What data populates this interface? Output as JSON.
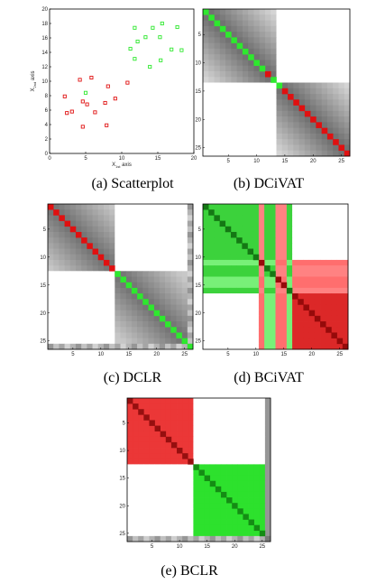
{
  "captions": {
    "a": "(a) Scatterplot",
    "b": "(b) DCiVAT",
    "c": "(c) DCLR",
    "d": "(d) BCiVAT",
    "e": "(e) BCLR"
  },
  "colors": {
    "red": "#e01010",
    "green": "#2ee82e",
    "frame": "#000000"
  },
  "chart_data": [
    {
      "id": "a",
      "type": "scatter",
      "xlabel_main": "X",
      "xlabel_sub": "1st",
      "xlabel_rest": "axis",
      "ylabel_main": "X",
      "ylabel_sub": "2nd",
      "ylabel_rest": "axis",
      "xlim": [
        0,
        20
      ],
      "ylim": [
        0,
        20
      ],
      "xticks": [
        0,
        5,
        10,
        15,
        20
      ],
      "yticks": [
        0,
        2,
        4,
        6,
        8,
        10,
        12,
        14,
        16,
        18,
        20
      ],
      "series": [
        {
          "color": "red",
          "points": [
            [
              4.2,
              10.2
            ],
            [
              5.8,
              10.5
            ],
            [
              2.1,
              7.9
            ],
            [
              3.1,
              5.8
            ],
            [
              4.6,
              7.2
            ],
            [
              5.2,
              6.8
            ],
            [
              6.3,
              5.7
            ],
            [
              8.1,
              9.3
            ],
            [
              7.7,
              7.0
            ],
            [
              9.1,
              7.6
            ],
            [
              4.6,
              3.7
            ],
            [
              7.9,
              3.9
            ],
            [
              2.4,
              5.6
            ],
            [
              10.8,
              9.8
            ]
          ]
        },
        {
          "color": "green",
          "points": [
            [
              11.8,
              17.4
            ],
            [
              15.6,
              18.0
            ],
            [
              12.2,
              15.5
            ],
            [
              13.3,
              16.1
            ],
            [
              14.3,
              17.4
            ],
            [
              11.2,
              14.5
            ],
            [
              13.9,
              12.0
            ],
            [
              15.3,
              16.1
            ],
            [
              17.7,
              17.5
            ],
            [
              11.8,
              13.1
            ],
            [
              16.9,
              14.4
            ],
            [
              15.4,
              12.9
            ],
            [
              18.3,
              14.3
            ],
            [
              5.0,
              8.4
            ]
          ]
        }
      ]
    },
    {
      "id": "b",
      "type": "heatmap",
      "n": 26,
      "split": 13,
      "xticks": [
        5,
        10,
        15,
        20,
        25
      ],
      "yticks": [
        5,
        10,
        15,
        20,
        25
      ],
      "diag_colors": [
        "green",
        "green",
        "green",
        "green",
        "green",
        "green",
        "green",
        "green",
        "green",
        "green",
        "green",
        "red",
        "green",
        "green",
        "red",
        "red",
        "red",
        "red",
        "red",
        "red",
        "red",
        "red",
        "red",
        "red",
        "red",
        "red"
      ]
    },
    {
      "id": "c",
      "type": "heatmap",
      "n": 26,
      "split": 12,
      "xticks": [
        5,
        10,
        15,
        20,
        25
      ],
      "yticks": [
        5,
        10,
        15,
        20,
        25
      ],
      "diag_colors": [
        "red",
        "red",
        "red",
        "red",
        "red",
        "red",
        "red",
        "red",
        "red",
        "red",
        "red",
        "red",
        "green",
        "green",
        "green",
        "green",
        "green",
        "green",
        "green",
        "green",
        "green",
        "green",
        "green",
        "green",
        "green",
        "green"
      ]
    },
    {
      "id": "d",
      "type": "heatmap",
      "n": 26,
      "split": 11,
      "xticks": [
        5,
        10,
        15,
        20,
        25
      ],
      "yticks": [
        5,
        10,
        15,
        20,
        25
      ]
    },
    {
      "id": "e",
      "type": "heatmap",
      "n": 26,
      "split": 12,
      "xticks": [
        5,
        10,
        15,
        20,
        25
      ],
      "yticks": [
        5,
        10,
        15,
        20,
        25
      ]
    }
  ]
}
